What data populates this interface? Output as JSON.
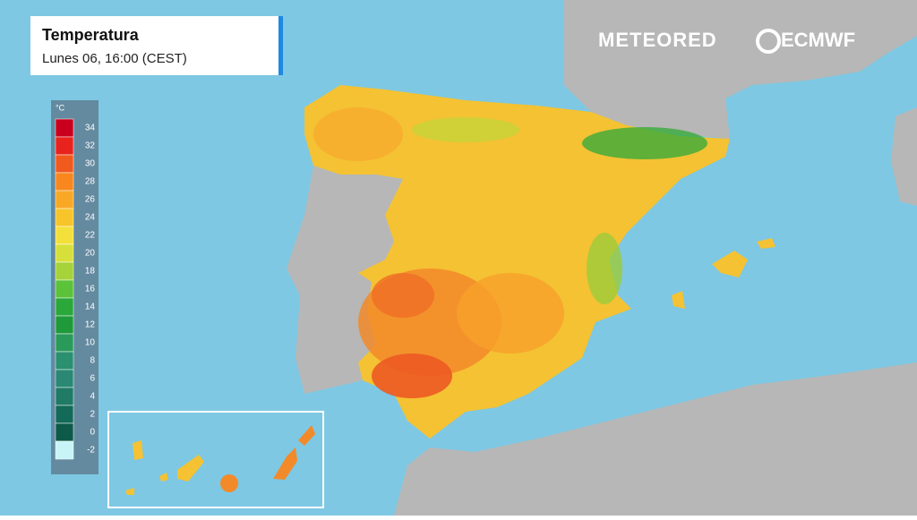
{
  "header": {
    "title": "Temperatura",
    "subtitle": "Lunes 06, 16:00 (CEST)"
  },
  "legend": {
    "unit": "°C",
    "ticks": [
      34,
      32,
      30,
      28,
      26,
      24,
      22,
      20,
      18,
      16,
      14,
      12,
      10,
      8,
      6,
      4,
      2,
      0,
      -2
    ],
    "colors": [
      "#c8001e",
      "#e8231e",
      "#f05a1e",
      "#f7871e",
      "#f9a825",
      "#f7c52a",
      "#f4e03a",
      "#d7e03a",
      "#a6d23a",
      "#5cc23a",
      "#2aa83a",
      "#1f9a3a",
      "#2a9a5a",
      "#2a9070",
      "#2a8874",
      "#1f7a66",
      "#146a58",
      "#0d5a48",
      "#c8f4f8"
    ]
  },
  "logos": [
    "METEORED",
    "ECMWF"
  ]
}
